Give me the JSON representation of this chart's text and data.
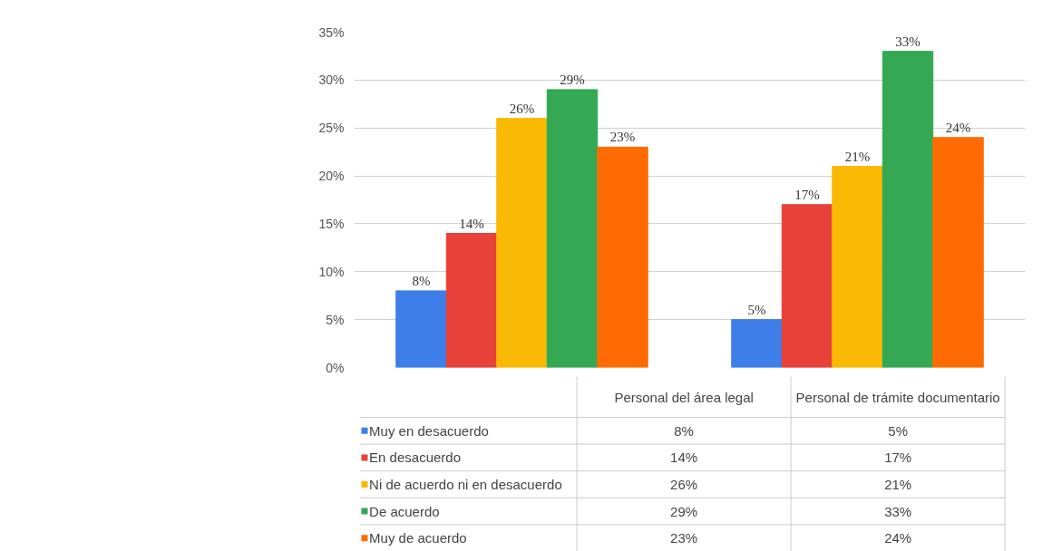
{
  "chart_data": {
    "type": "bar",
    "categories": [
      "Personal del área legal",
      "Personal de trámite documentario"
    ],
    "series": [
      {
        "name": "Muy en desacuerdo",
        "color": "#3d7ee8",
        "values": [
          8,
          5
        ],
        "value_labels": [
          "8%",
          "5%"
        ]
      },
      {
        "name": "En desacuerdo",
        "color": "#e8413a",
        "values": [
          14,
          17
        ],
        "value_labels": [
          "14%",
          "17%"
        ]
      },
      {
        "name": "Ni de acuerdo ni en desacuerdo",
        "color": "#f9b904",
        "values": [
          26,
          21
        ],
        "value_labels": [
          "26%",
          "21%"
        ]
      },
      {
        "name": "De acuerdo",
        "color": "#34a853",
        "values": [
          29,
          33
        ],
        "value_labels": [
          "29%",
          "33%"
        ]
      },
      {
        "name": "Muy de acuerdo",
        "color": "#fe6b02",
        "values": [
          23,
          24
        ],
        "value_labels": [
          "23%",
          "24%"
        ]
      }
    ],
    "ylim": [
      0,
      35
    ],
    "yticks": [
      {
        "value": 0,
        "label": "0%"
      },
      {
        "value": 5,
        "label": "5%"
      },
      {
        "value": 10,
        "label": "10%"
      },
      {
        "value": 15,
        "label": "15%"
      },
      {
        "value": 20,
        "label": "20%"
      },
      {
        "value": 25,
        "label": "25%"
      },
      {
        "value": 30,
        "label": "30%"
      },
      {
        "value": 35,
        "label": "35%"
      }
    ],
    "grid": "y",
    "legend": "bottom"
  }
}
